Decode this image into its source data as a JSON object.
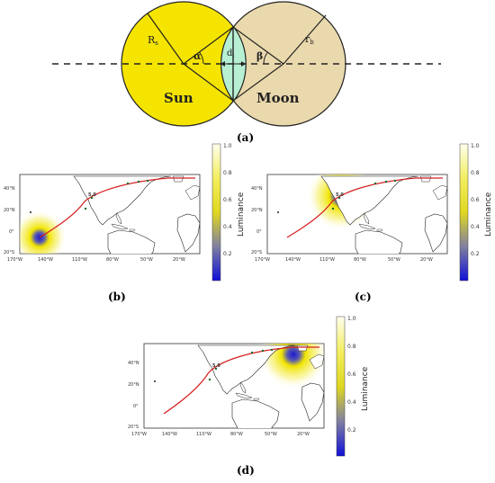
{
  "diagram": {
    "sun_label": "Sun",
    "moon_label": "Moon",
    "r_sun_label": "R",
    "r_sun_sub": "s",
    "r_moon_label": "r",
    "r_moon_sub": "b",
    "alpha_label": "α",
    "beta_label": "β",
    "d_label": "d",
    "d_sub": "i",
    "colors": {
      "sun": "#f5e400",
      "moon": "#ead9ad",
      "lens": "#b7efd3"
    }
  },
  "panel_labels": {
    "a": "(a)",
    "b": "(b)",
    "c": "(c)",
    "d": "(d)"
  },
  "maps": {
    "lat_ticks": [
      "40°N",
      "20°N",
      "0°",
      "20°S"
    ],
    "lon_ticks": [
      "170°W",
      "140°W",
      "110°W",
      "80°W",
      "50°W",
      "20°W"
    ],
    "track_label": "5.0",
    "colorbar_title": "Luminance",
    "colorbar_ticks": [
      "1.0",
      "0.8",
      "0.6",
      "0.4",
      "0.2"
    ],
    "colors": {
      "track": "#d42020",
      "yellow": "#f5e800",
      "blue": "#2020d0"
    }
  }
}
